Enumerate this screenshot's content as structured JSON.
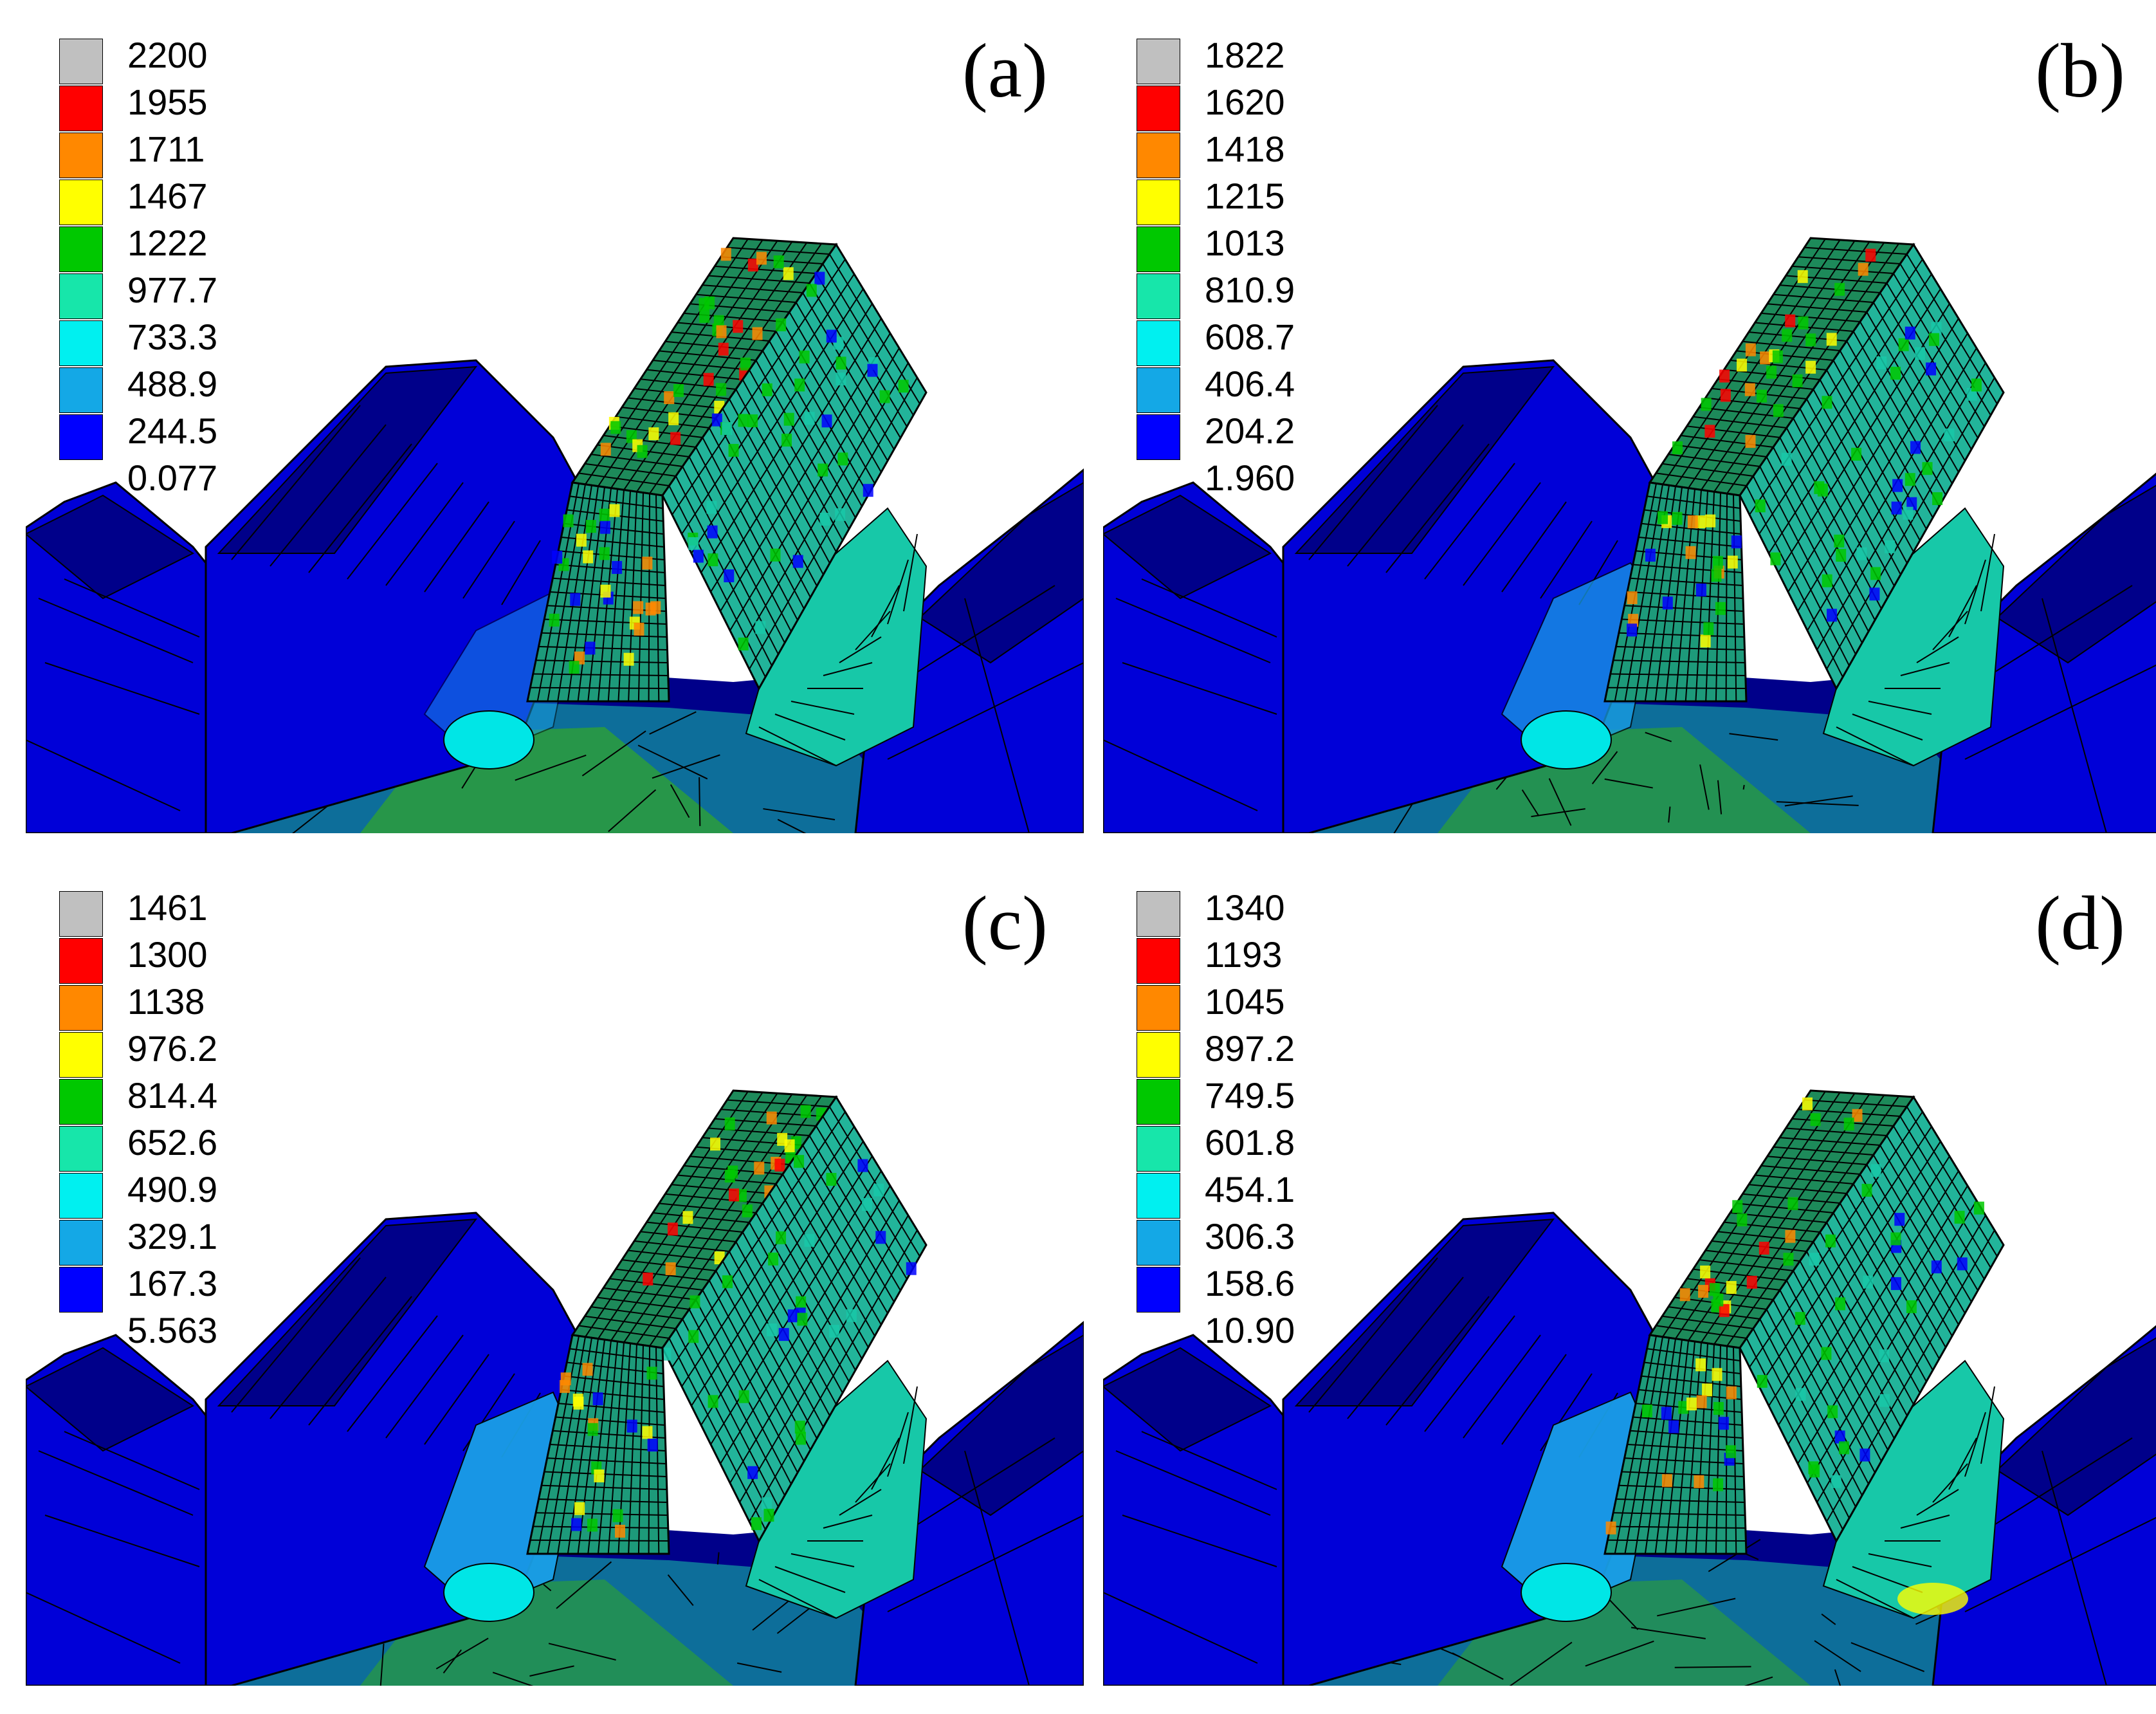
{
  "colors": {
    "blue_dark": "#0000d8",
    "blue": "#0000ff",
    "navy": "#00008a",
    "light_blue": "#1a9fe6",
    "cyan": "#00e6e6",
    "teal": "#17c8a8",
    "green": "#00c800",
    "mesh_green": "#1d8a5a",
    "yellow": "#ffff00",
    "orange": "#ff8800",
    "red": "#ff0000",
    "gray": "#c0c0c0",
    "mesh_line": "#000000"
  },
  "legend_colors": [
    "#c0c0c0",
    "#ff0000",
    "#ff8800",
    "#ffff00",
    "#00c800",
    "#17e6aa",
    "#00f0f0",
    "#14a8e6",
    "#0000ff"
  ],
  "panels": [
    {
      "label": "(a)",
      "ticks": [
        "2200",
        "1955",
        "1711",
        "1467",
        "1222",
        "977.7",
        "733.3",
        "488.9",
        "244.5",
        "0.077"
      ],
      "stress_scale": 1.0
    },
    {
      "label": "(b)",
      "ticks": [
        "1822",
        "1620",
        "1418",
        "1215",
        "1013",
        "810.9",
        "608.7",
        "406.4",
        "204.2",
        "1.960"
      ],
      "stress_scale": 0.85
    },
    {
      "label": "(c)",
      "ticks": [
        "1461",
        "1300",
        "1138",
        "976.2",
        "814.4",
        "652.6",
        "490.9",
        "329.1",
        "167.3",
        "5.563"
      ],
      "stress_scale": 0.75
    },
    {
      "label": "(d)",
      "ticks": [
        "1340",
        "1193",
        "1045",
        "897.2",
        "749.5",
        "601.8",
        "454.1",
        "306.3",
        "158.6",
        "10.90"
      ],
      "stress_scale": 0.7
    }
  ]
}
